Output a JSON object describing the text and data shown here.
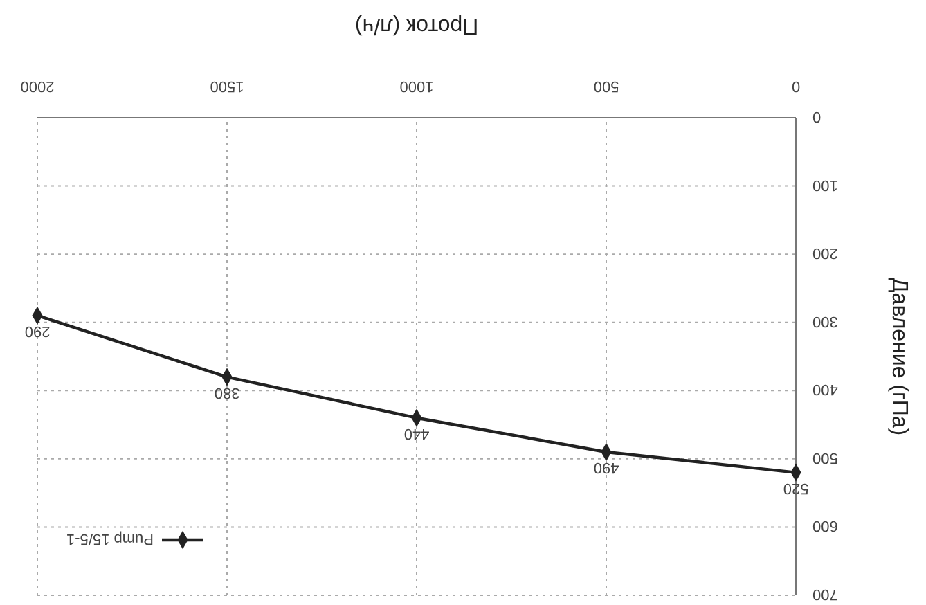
{
  "chart_data": {
    "type": "line",
    "xlabel": "Проток (л/ч)",
    "ylabel": "Давление (гПа)",
    "x": [
      0,
      500,
      1000,
      1500,
      2000
    ],
    "series": [
      {
        "name": "Pump 15/5-1",
        "color": "#222222",
        "values": [
          520,
          490,
          440,
          380,
          290
        ]
      }
    ],
    "xlim": [
      2000,
      0
    ],
    "xticks": [
      0,
      500,
      1000,
      1500,
      2000
    ],
    "ylim": [
      700,
      0
    ],
    "yticks": [
      0,
      100,
      200,
      300,
      400,
      500,
      600,
      700
    ],
    "grid": true,
    "legend": "bottom left",
    "marker": "diamond",
    "line_style": "solid",
    "data_labels": true
  }
}
